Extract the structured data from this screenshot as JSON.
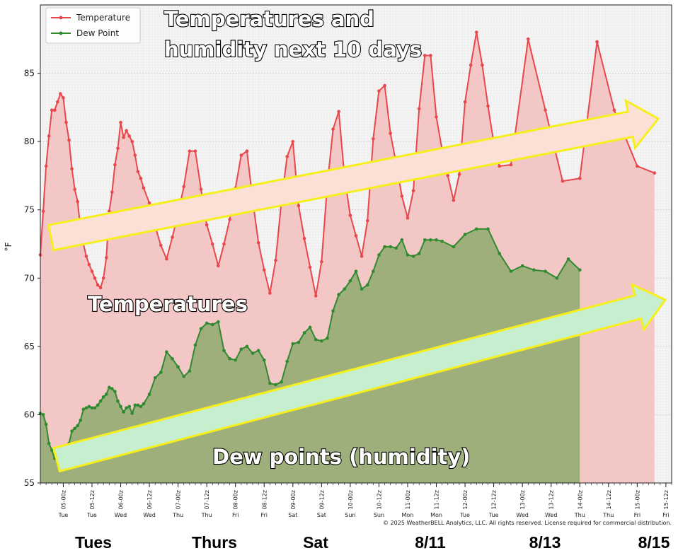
{
  "chart_data": {
    "type": "area",
    "title": "Temperatures and humidity next 10 days",
    "ylabel": "°F",
    "ylim": [
      55,
      90
    ],
    "yticks": [
      55,
      60,
      65,
      70,
      75,
      80,
      85
    ],
    "legend": {
      "placement": "top-left",
      "entries": [
        "Temperature",
        "Dew Point"
      ]
    },
    "grid": true,
    "xlim": [
      0,
      107
    ],
    "series": [
      {
        "name": "Temperature",
        "color": "#e8474b",
        "fill": "#f4c7c7",
        "points": [
          [
            0,
            71.7
          ],
          [
            0.5,
            74.9
          ],
          [
            1,
            78.2
          ],
          [
            1.5,
            80.4
          ],
          [
            2,
            82.3
          ],
          [
            2.5,
            82.3
          ],
          [
            3,
            82.9
          ],
          [
            3.5,
            83.5
          ],
          [
            4,
            83.2
          ],
          [
            4.5,
            81.4
          ],
          [
            5,
            80.1
          ],
          [
            5.5,
            78
          ],
          [
            6,
            76.5
          ],
          [
            6.5,
            75.6
          ],
          [
            7,
            73.6
          ],
          [
            7.5,
            72.5
          ],
          [
            8,
            71.6
          ],
          [
            8.5,
            71
          ],
          [
            9,
            70.5
          ],
          [
            9.5,
            70
          ],
          [
            10,
            69.5
          ],
          [
            10.5,
            69.3
          ],
          [
            11,
            70
          ],
          [
            11.5,
            71.5
          ],
          [
            12,
            74.9
          ],
          [
            12.5,
            76.3
          ],
          [
            13,
            78.3
          ],
          [
            13.5,
            79.5
          ],
          [
            14,
            81.4
          ],
          [
            14.5,
            80.3
          ],
          [
            15,
            80.8
          ],
          [
            15.5,
            80.4
          ],
          [
            16,
            80
          ],
          [
            16.5,
            79
          ],
          [
            17,
            77.8
          ],
          [
            17.5,
            77.3
          ],
          [
            18,
            76.6
          ],
          [
            19,
            75.5
          ],
          [
            20,
            73.8
          ],
          [
            21,
            72.4
          ],
          [
            22,
            71.4
          ],
          [
            23,
            73
          ],
          [
            24,
            74.7
          ],
          [
            25,
            76.7
          ],
          [
            26,
            79.3
          ],
          [
            27,
            79.3
          ],
          [
            28,
            76.5
          ],
          [
            29,
            73.9
          ],
          [
            30,
            72.5
          ],
          [
            31,
            70.9
          ],
          [
            32,
            72.5
          ],
          [
            33,
            74.3
          ],
          [
            34,
            76.6
          ],
          [
            35,
            79
          ],
          [
            36,
            79.3
          ],
          [
            37,
            75.7
          ],
          [
            38,
            72.6
          ],
          [
            39,
            70.6
          ],
          [
            40,
            68.9
          ],
          [
            41,
            71.3
          ],
          [
            42,
            75.6
          ],
          [
            43,
            78.9
          ],
          [
            44,
            80
          ],
          [
            45,
            75.3
          ],
          [
            46,
            72.9
          ],
          [
            47,
            70.8
          ],
          [
            48,
            68.7
          ],
          [
            49,
            71.2
          ],
          [
            50,
            76.8
          ],
          [
            51,
            80.9
          ],
          [
            52,
            82.2
          ],
          [
            53,
            77.4
          ],
          [
            54,
            74.6
          ],
          [
            55,
            73.1
          ],
          [
            56,
            71.6
          ],
          [
            57,
            74.2
          ],
          [
            58,
            80.2
          ],
          [
            59,
            83.7
          ],
          [
            60,
            84.1
          ],
          [
            61,
            80.6
          ],
          [
            62,
            78.4
          ],
          [
            63,
            76
          ],
          [
            64,
            74.4
          ],
          [
            65,
            76.4
          ],
          [
            66,
            82.4
          ],
          [
            67,
            86.3
          ],
          [
            68,
            86.3
          ],
          [
            69,
            81.8
          ],
          [
            70,
            79.4
          ],
          [
            71,
            77.5
          ],
          [
            72,
            75.7
          ],
          [
            73,
            77.6
          ],
          [
            74,
            82.9
          ],
          [
            75,
            85.6
          ],
          [
            76,
            88
          ],
          [
            77,
            85.6
          ],
          [
            78,
            82.6
          ],
          [
            79,
            79.9
          ],
          [
            80,
            78.2
          ],
          [
            82,
            78.3
          ],
          [
            85,
            87.5
          ],
          [
            88,
            82.3
          ],
          [
            91,
            77.1
          ],
          [
            94,
            77.3
          ],
          [
            97,
            87.3
          ],
          [
            100,
            82.3
          ],
          [
            104,
            78.2
          ],
          [
            107,
            77.7
          ]
        ]
      },
      {
        "name": "Dew Point",
        "color": "#2f8a2f",
        "fill": "#9eaf7c",
        "points": [
          [
            0,
            60.1
          ],
          [
            0.5,
            60
          ],
          [
            1,
            59.3
          ],
          [
            1.5,
            57.9
          ],
          [
            2,
            57.4
          ],
          [
            2.5,
            56.8
          ],
          [
            3,
            56.6
          ],
          [
            3.5,
            56.7
          ],
          [
            4,
            56
          ],
          [
            4.5,
            56.7
          ],
          [
            5,
            57.9
          ],
          [
            5.5,
            58.8
          ],
          [
            6,
            59
          ],
          [
            6.5,
            59.2
          ],
          [
            7,
            59.6
          ],
          [
            7.5,
            60.4
          ],
          [
            8,
            60.5
          ],
          [
            8.5,
            60.6
          ],
          [
            9,
            60.5
          ],
          [
            9.5,
            60.5
          ],
          [
            10,
            60.7
          ],
          [
            10.5,
            61
          ],
          [
            11,
            61.3
          ],
          [
            11.5,
            61.5
          ],
          [
            12,
            62
          ],
          [
            12.5,
            61.9
          ],
          [
            13,
            61.7
          ],
          [
            13.5,
            61
          ],
          [
            14,
            60.6
          ],
          [
            14.5,
            60.2
          ],
          [
            15,
            60.5
          ],
          [
            15.5,
            60.6
          ],
          [
            16,
            60.1
          ],
          [
            16.5,
            60.7
          ],
          [
            17,
            60.7
          ],
          [
            17.5,
            60.6
          ],
          [
            18,
            60.8
          ],
          [
            19,
            61.5
          ],
          [
            20,
            62.7
          ],
          [
            21,
            63.1
          ],
          [
            22,
            64.6
          ],
          [
            23,
            64.1
          ],
          [
            24,
            63.5
          ],
          [
            25,
            62.8
          ],
          [
            26,
            63.2
          ],
          [
            27,
            65.1
          ],
          [
            28,
            66.3
          ],
          [
            29,
            66.7
          ],
          [
            30,
            66.6
          ],
          [
            31,
            66.8
          ],
          [
            32,
            64.7
          ],
          [
            33,
            64.1
          ],
          [
            34,
            64
          ],
          [
            35,
            64.8
          ],
          [
            36,
            65
          ],
          [
            37,
            64.5
          ],
          [
            38,
            64.7
          ],
          [
            39,
            64
          ],
          [
            40,
            62.3
          ],
          [
            41,
            62.2
          ],
          [
            42,
            62.4
          ],
          [
            43,
            63.9
          ],
          [
            44,
            65.2
          ],
          [
            45,
            65.3
          ],
          [
            46,
            66
          ],
          [
            47,
            66.4
          ],
          [
            48,
            65.5
          ],
          [
            49,
            65.4
          ],
          [
            50,
            65.6
          ],
          [
            51,
            67.6
          ],
          [
            52,
            68.8
          ],
          [
            53,
            69.2
          ],
          [
            54,
            69.8
          ],
          [
            55,
            70.5
          ],
          [
            56,
            69.2
          ],
          [
            57,
            69.5
          ],
          [
            58,
            70.5
          ],
          [
            59,
            71.7
          ],
          [
            60,
            72.3
          ],
          [
            61,
            72.3
          ],
          [
            62,
            72.2
          ],
          [
            63,
            72.8
          ],
          [
            64,
            71.7
          ],
          [
            65,
            71.6
          ],
          [
            66,
            71.8
          ],
          [
            67,
            72.8
          ],
          [
            68,
            72.8
          ],
          [
            69,
            72.8
          ],
          [
            70,
            72.7
          ],
          [
            72,
            72.3
          ],
          [
            74,
            73.2
          ],
          [
            76,
            73.6
          ],
          [
            78,
            73.6
          ],
          [
            80,
            71.8
          ],
          [
            82,
            70.5
          ],
          [
            84,
            70.9
          ],
          [
            86,
            70.6
          ],
          [
            88,
            70.5
          ],
          [
            90,
            70
          ],
          [
            92,
            71.4
          ],
          [
            94,
            70.6
          ]
        ]
      }
    ],
    "x_tick_labels": [
      {
        "x": 4,
        "time": "05-00z",
        "day": "Tue"
      },
      {
        "x": 9,
        "time": "05-12z",
        "day": "Tue"
      },
      {
        "x": 14,
        "time": "06-00z",
        "day": "Wed"
      },
      {
        "x": 19,
        "time": "06-12z",
        "day": "Wed"
      },
      {
        "x": 24,
        "time": "07-00z",
        "day": "Thu"
      },
      {
        "x": 29,
        "time": "07-12z",
        "day": "Thu"
      },
      {
        "x": 34,
        "time": "08-00z",
        "day": "Fri"
      },
      {
        "x": 39,
        "time": "08-12z",
        "day": "Fri"
      },
      {
        "x": 44,
        "time": "09-00z",
        "day": "Sat"
      },
      {
        "x": 49,
        "time": "09-12z",
        "day": "Sat"
      },
      {
        "x": 54,
        "time": "10-00z",
        "day": "Sun"
      },
      {
        "x": 59,
        "time": "10-12z",
        "day": "Sun"
      },
      {
        "x": 64,
        "time": "11-00z",
        "day": "Mon"
      },
      {
        "x": 69,
        "time": "11-12z",
        "day": "Mon"
      },
      {
        "x": 74,
        "time": "12-00z",
        "day": "Tue"
      },
      {
        "x": 79,
        "time": "12-12z",
        "day": "Tue"
      },
      {
        "x": 84,
        "time": "13-00z",
        "day": "Wed"
      },
      {
        "x": 89,
        "time": "13-12z",
        "day": "Wed"
      },
      {
        "x": 94,
        "time": "14-00z",
        "day": "Thu"
      },
      {
        "x": 99,
        "time": "14-12z",
        "day": "Thu"
      },
      {
        "x": 104,
        "time": "15-00z",
        "day": "Fri"
      },
      {
        "x": 109,
        "time": "15-12z",
        "day": "Fri"
      }
    ],
    "annotations": [
      "Temperatures and",
      "humidity next 10 days",
      "Temperatures",
      "Dew points (humidity)"
    ],
    "arrow_colors": {
      "temperature_arrow": "#fbe0d6",
      "dewpoint_arrow": "#c6efcf",
      "arrow_outline": "#f6ef1c"
    },
    "bottom_day_labels": [
      {
        "x": 8,
        "label": "Tues"
      },
      {
        "x": 28,
        "label": "Thurs"
      },
      {
        "x": 48,
        "label": "Sat"
      },
      {
        "x": 68,
        "label": "8/11"
      },
      {
        "x": 88,
        "label": "8/13"
      },
      {
        "x": 106,
        "label": "8/15"
      }
    ],
    "copyright": "© 2025 WeatherBELL Analytics, LLC. All rights reserved. License required for commercial distribution."
  }
}
